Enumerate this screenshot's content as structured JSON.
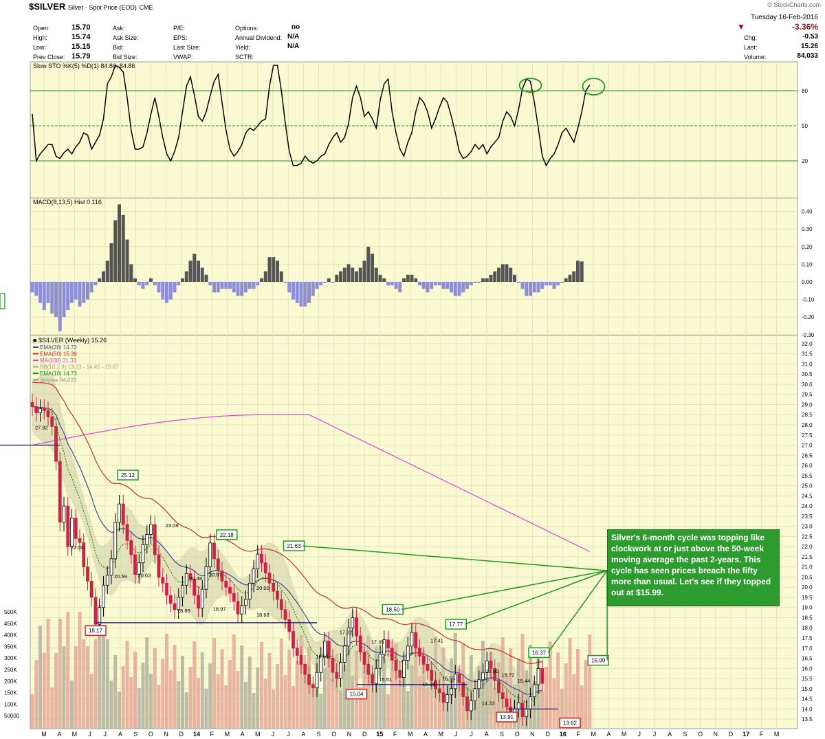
{
  "header": {
    "symbol": "$SILVER",
    "description": "Silver - Spot Price (EOD)",
    "exchange": "CME",
    "source": "© StockCharts.com",
    "date": "Tuesday 16-Feb-2016",
    "open_label": "Open:",
    "open": "15.70",
    "high_label": "High:",
    "high": "15.74",
    "low_label": "Low:",
    "low": "15.15",
    "prev_label": "Prev Close:",
    "prev": "15.79",
    "ask_label": "Ask:",
    "ask_size_label": "Ask Size:",
    "bid_label": "Bid:",
    "bid_size_label": "Bid Size:",
    "pe_label": "P/E:",
    "eps_label": "EPS:",
    "last_size_label": "Last Size:",
    "vwap_label": "VWAP:",
    "options_label": "Options:",
    "options": "no",
    "dividend_label": "Annual Dividend:",
    "dividend": "N/A",
    "yield_label": "Yield:",
    "yield": "N/A",
    "sctr_label": "SCTR:",
    "pct_change": "-3.36%",
    "chg_label": "Chg:",
    "chg": "-0.53",
    "last_label": "Last:",
    "last": "15.26",
    "volume_label": "Volume:",
    "volume": "84,033"
  },
  "note": "Silver's 6-month cycle was topping like clockwork at or just above the 50-week moving average the past 2-years. This cycle has seen prices breach the fifty more than usual. Let's see if they topped out at $15.99.",
  "colors": {
    "panel_bg": "#fafad2",
    "grid": "#e4e4b6",
    "green": "#1f9a1f",
    "red_bar": "#cc2244",
    "sto_line": "#000000",
    "macd_pos": "#555555",
    "macd_neg": "#8e8ed8",
    "ema20": "#3a4a9a",
    "ema50": "#cc2a2a",
    "ma200": "#e040e0",
    "ema10": "#1a8a1a",
    "bb": "#c8c8a0",
    "vol_up": "#b0b0a0",
    "vol_down": "#e4a898",
    "hline_blue": "#0000cc"
  },
  "chart_data": [
    {
      "type": "line",
      "name": "Slow STO %K(5) %D(1)",
      "legend": "Slow STO %K(5) %D(1) 84.86, 84.86",
      "ylim": [
        0,
        100
      ],
      "yticks": [
        20,
        50,
        80
      ],
      "weeks": 144,
      "values": [
        60,
        20,
        26,
        30,
        34,
        34,
        24,
        22,
        27,
        30,
        26,
        32,
        36,
        44,
        42,
        30,
        36,
        42,
        56,
        86,
        92,
        110,
        100,
        96,
        74,
        46,
        30,
        30,
        32,
        44,
        60,
        74,
        58,
        40,
        26,
        20,
        28,
        40,
        62,
        84,
        92,
        76,
        58,
        54,
        62,
        76,
        88,
        94,
        70,
        46,
        30,
        24,
        28,
        34,
        44,
        48,
        46,
        50,
        54,
        56,
        84,
        108,
        104,
        80,
        52,
        28,
        16,
        16,
        18,
        24,
        20,
        18,
        20,
        24,
        26,
        34,
        40,
        44,
        36,
        40,
        52,
        74,
        84,
        74,
        58,
        62,
        56,
        48,
        72,
        86,
        90,
        62,
        44,
        30,
        24,
        36,
        44,
        62,
        74,
        70,
        62,
        48,
        56,
        66,
        74,
        70,
        58,
        44,
        28,
        22,
        24,
        28,
        34,
        30,
        34,
        26,
        32,
        36,
        40,
        54,
        62,
        58,
        50,
        64,
        82,
        90,
        88,
        70,
        48,
        24,
        16,
        22,
        26,
        34,
        44,
        48,
        42,
        36,
        48,
        62,
        80,
        84.86
      ],
      "last_label": "84.86"
    },
    {
      "type": "bar",
      "name": "MACD(8,13,5) Hist",
      "legend": "MACD(8,13,5) Hist 0.116",
      "ylim": [
        -0.3,
        0.45
      ],
      "yticks": [
        0.4,
        0.3,
        0.2,
        0.1,
        0.0,
        -0.1,
        -0.2,
        -0.3
      ],
      "ytick_labels": [
        "0.40",
        "0.30",
        "0.20",
        "0.10",
        "0.00",
        "-0.10",
        "-0.20",
        "-0.30"
      ],
      "values": [
        -0.06,
        -0.08,
        -0.12,
        -0.16,
        -0.12,
        -0.18,
        -0.2,
        -0.28,
        -0.2,
        -0.16,
        -0.12,
        -0.1,
        -0.14,
        -0.12,
        -0.1,
        -0.06,
        -0.02,
        0.02,
        0.06,
        0.12,
        0.22,
        0.35,
        0.44,
        0.38,
        0.24,
        0.1,
        0.02,
        -0.02,
        -0.04,
        -0.02,
        0.02,
        -0.02,
        -0.06,
        -0.1,
        -0.12,
        -0.1,
        -0.06,
        -0.02,
        0.02,
        0.06,
        0.12,
        0.16,
        0.12,
        0.08,
        0.04,
        -0.02,
        -0.06,
        -0.06,
        -0.04,
        -0.04,
        -0.04,
        -0.06,
        -0.08,
        -0.08,
        -0.06,
        -0.04,
        -0.04,
        -0.02,
        0.02,
        0.06,
        0.14,
        0.14,
        0.12,
        0.06,
        0.0,
        -0.06,
        -0.1,
        -0.12,
        -0.14,
        -0.14,
        -0.12,
        -0.08,
        -0.04,
        -0.02,
        0.0,
        0.02,
        0.0,
        0.04,
        0.06,
        0.08,
        0.1,
        0.08,
        0.06,
        0.08,
        0.12,
        0.2,
        0.16,
        0.08,
        0.04,
        0.02,
        -0.02,
        -0.02,
        -0.04,
        -0.06,
        0.02,
        0.04,
        0.04,
        0.02,
        -0.02,
        -0.04,
        -0.06,
        -0.04,
        -0.02,
        -0.02,
        -0.04,
        -0.04,
        -0.06,
        -0.08,
        -0.08,
        -0.06,
        -0.04,
        -0.02,
        0.0,
        0.0,
        0.02,
        0.02,
        0.04,
        0.06,
        0.08,
        0.1,
        0.1,
        0.08,
        0.04,
        0.0,
        -0.04,
        -0.08,
        -0.08,
        -0.06,
        -0.06,
        -0.04,
        -0.02,
        -0.02,
        -0.04,
        -0.02,
        0.0,
        0.02,
        0.04,
        0.06,
        0.12,
        0.116
      ]
    },
    {
      "type": "candlestick",
      "name": "$SILVER (Weekly)",
      "legend": "$SILVER (Weekly) 15.26",
      "ylim": [
        13.3,
        32.2
      ],
      "ytick_labels": [
        "32.0",
        "31.5",
        "31.0",
        "30.5",
        "30.0",
        "29.5",
        "29.0",
        "28.5",
        "28.0",
        "27.5",
        "27.0",
        "26.5",
        "26.0",
        "25.5",
        "25.0",
        "24.5",
        "24.0",
        "23.5",
        "23.0",
        "22.5",
        "22.0",
        "21.5",
        "21.0",
        "20.5",
        "20.0",
        "19.5",
        "19.0",
        "18.5",
        "18.0",
        "17.5",
        "17.0",
        "16.5",
        "16.0",
        "15.5",
        "15.0",
        "14.5",
        "14.0",
        "13.5"
      ],
      "legend_entries": [
        {
          "label": "EMA(20) 14.72",
          "color": "#3a4a9a"
        },
        {
          "label": "EMA(50) 15.39",
          "color": "#cc2a2a"
        },
        {
          "label": "MA(200) 21.33",
          "color": "#e040e0"
        },
        {
          "label": "BB(10,1.9) 13.23 - 14.45 - 15.67",
          "color": "#a0a080"
        },
        {
          "label": "EMA(10) 14.73",
          "color": "#1a8a1a"
        },
        {
          "label": "Volume 84,033",
          "color": "#909080"
        }
      ],
      "closes": [
        28.9,
        28.6,
        28.8,
        28.7,
        28.4,
        27.92,
        26.2,
        23.2,
        24.0,
        22.0,
        23.4,
        22.4,
        22.2,
        21.0,
        20.3,
        19.5,
        18.17,
        19.0,
        20.1,
        20.59,
        21.4,
        23.2,
        24.1,
        23.09,
        22.3,
        21.6,
        20.63,
        21.2,
        22.1,
        22.6,
        23.09,
        21.6,
        20.48,
        20.2,
        19.6,
        19.2,
        18.89,
        19.5,
        20.1,
        20.67,
        20.4,
        19.6,
        18.97,
        19.9,
        21.0,
        22.18,
        21.4,
        20.8,
        20.3,
        20.0,
        19.7,
        19.3,
        18.68,
        19.1,
        19.4,
        20.2,
        20.9,
        21.63,
        21.2,
        20.7,
        20.2,
        19.8,
        19.4,
        18.9,
        18.4,
        17.82,
        17.0,
        16.64,
        16.2,
        15.7,
        15.2,
        15.04,
        15.8,
        16.6,
        17.35,
        16.5,
        15.8,
        15.51,
        16.3,
        17.1,
        18.0,
        18.5,
        17.6,
        16.8,
        16.2,
        15.7,
        15.26,
        16.0,
        16.7,
        17.41,
        17.0,
        16.4,
        15.9,
        15.55,
        16.4,
        17.1,
        17.77,
        17.0,
        16.6,
        16.2,
        15.9,
        15.4,
        15.0,
        14.8,
        14.33,
        14.7,
        15.0,
        15.72,
        15.3,
        14.6,
        13.91,
        14.4,
        15.0,
        15.44,
        15.8,
        16.37,
        16.0,
        15.4,
        14.8,
        14.5,
        14.1,
        13.8,
        14.0,
        14.3,
        13.62,
        14.0,
        14.6,
        15.2,
        15.99,
        15.26
      ],
      "annotations_high": [
        {
          "label": "25.12"
        },
        {
          "label": "22.18"
        },
        {
          "label": "21.63"
        },
        {
          "label": "18.50"
        },
        {
          "label": "17.77"
        },
        {
          "label": "16.37"
        },
        {
          "label": "15.99"
        }
      ],
      "annotations_low": [
        {
          "label": "18.17"
        },
        {
          "label": "15.04"
        },
        {
          "label": "13.91"
        },
        {
          "label": "13.62"
        }
      ],
      "price_labels": [
        "27.92",
        "22.00",
        "20.59",
        "23.09",
        "20.63",
        "20.48",
        "20.67",
        "18.89",
        "18.97",
        "20.00",
        "18.68",
        "17.82",
        "16.64",
        "17.35",
        "15.51",
        "15.26",
        "17.41",
        "15.55",
        "15.90",
        "14.33",
        "15.72",
        "15.44"
      ],
      "volume_ticks": [
        "500K",
        "450K",
        "400K",
        "350K",
        "300K",
        "250K",
        "200K",
        "150K",
        "100K",
        "50000"
      ]
    }
  ],
  "xaxis": {
    "labels": [
      "M",
      "A",
      "M",
      "J",
      "J",
      "A",
      "S",
      "O",
      "N",
      "D",
      "14",
      "F",
      "M",
      "A",
      "M",
      "J",
      "J",
      "A",
      "S",
      "O",
      "N",
      "D",
      "15",
      "F",
      "M",
      "A",
      "M",
      "J",
      "J",
      "A",
      "S",
      "O",
      "N",
      "D",
      "16",
      "F",
      "M",
      "A",
      "M",
      "J",
      "J",
      "A",
      "S",
      "O",
      "N",
      "D",
      "17",
      "F",
      "M"
    ]
  }
}
